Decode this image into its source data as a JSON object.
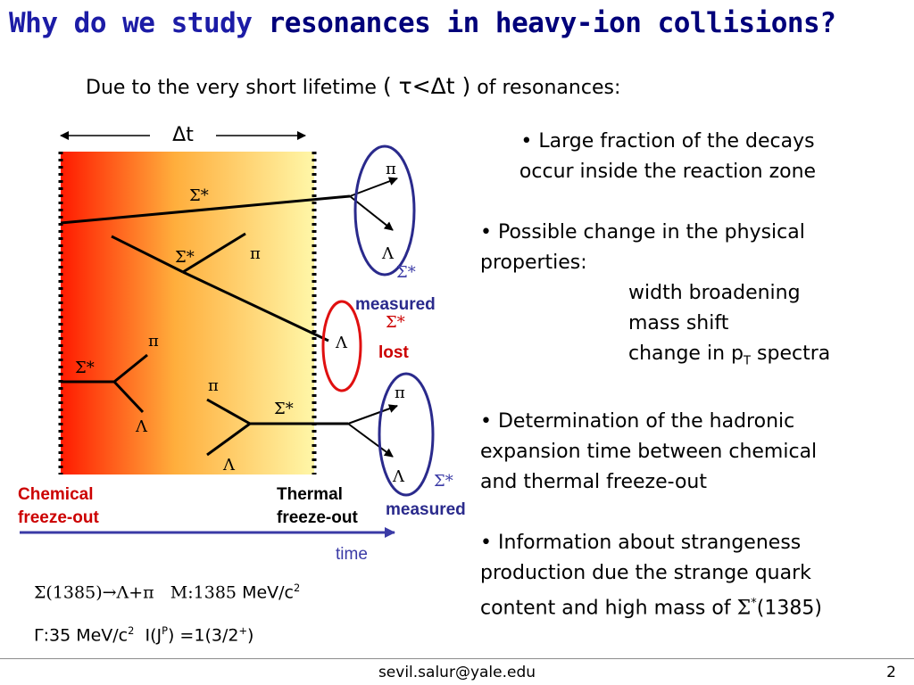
{
  "slide": {
    "title_part1": "Why do we study",
    "title_part2": "resonances in heavy-ion collisions?",
    "subtitle_pre": "Due to the very short lifetime",
    "subtitle_math": "( τ<Δt )",
    "subtitle_post": "of resonances:"
  },
  "diagram": {
    "delta_t": "Δt",
    "sigma_star": "Σ*",
    "pi": "π",
    "lambda": "Λ",
    "measured": "measured",
    "lost": "lost",
    "chemical_line1": "Chemical",
    "chemical_line2": "freeze-out",
    "thermal_line1": "Thermal",
    "thermal_line2": "freeze-out",
    "time": "time",
    "colors": {
      "gradient_start": "#ff1a00",
      "gradient_mid": "#ffae3c",
      "gradient_end": "#fff7a8",
      "blue_ellipse": "#2a2a8c",
      "red_ellipse": "#e01010",
      "measured_text": "#2a2a8c",
      "lost_text": "#cc0000",
      "chemical_text": "#cc0000",
      "time_axis": "#3a3aa6"
    }
  },
  "bullets": {
    "b1_line1": "• Large fraction of the decays",
    "b1_line2": "occur inside the reaction zone",
    "b2_line1": "• Possible change in the physical",
    "b2_line2": "properties:",
    "b2_sub1": "width broadening",
    "b2_sub2": "mass shift",
    "b2_sub3_pre": "change in p",
    "b2_sub3_sub": "T",
    "b2_sub3_post": " spectra",
    "b3_line1": "• Determination of the hadronic",
    "b3_line2": "expansion time between chemical",
    "b3_line3": "and thermal freeze-out",
    "b4_line1": "• Information about strangeness",
    "b4_line2": "production due the strange quark",
    "b4_line3_pre": "content and high mass of ",
    "b4_line3_sigma": "Σ",
    "b4_line3_sup": "*",
    "b4_line3_post": "(1385)"
  },
  "formulas": {
    "f1_decay": "Σ(1385)→Λ+π",
    "f1_mass": "M:1385",
    "f1_unit": "MeV/c",
    "f1_unit_sup": "2",
    "f2_width": "Γ:35 MeV/c",
    "f2_width_sup": "2",
    "f2_iso_pre": "I(J",
    "f2_iso_sup": "P",
    "f2_iso_mid": ") =1(3/2",
    "f2_iso_sup2": "+",
    "f2_iso_post": ")"
  },
  "footer": {
    "email": "sevil.salur@yale.edu",
    "page": "2"
  }
}
